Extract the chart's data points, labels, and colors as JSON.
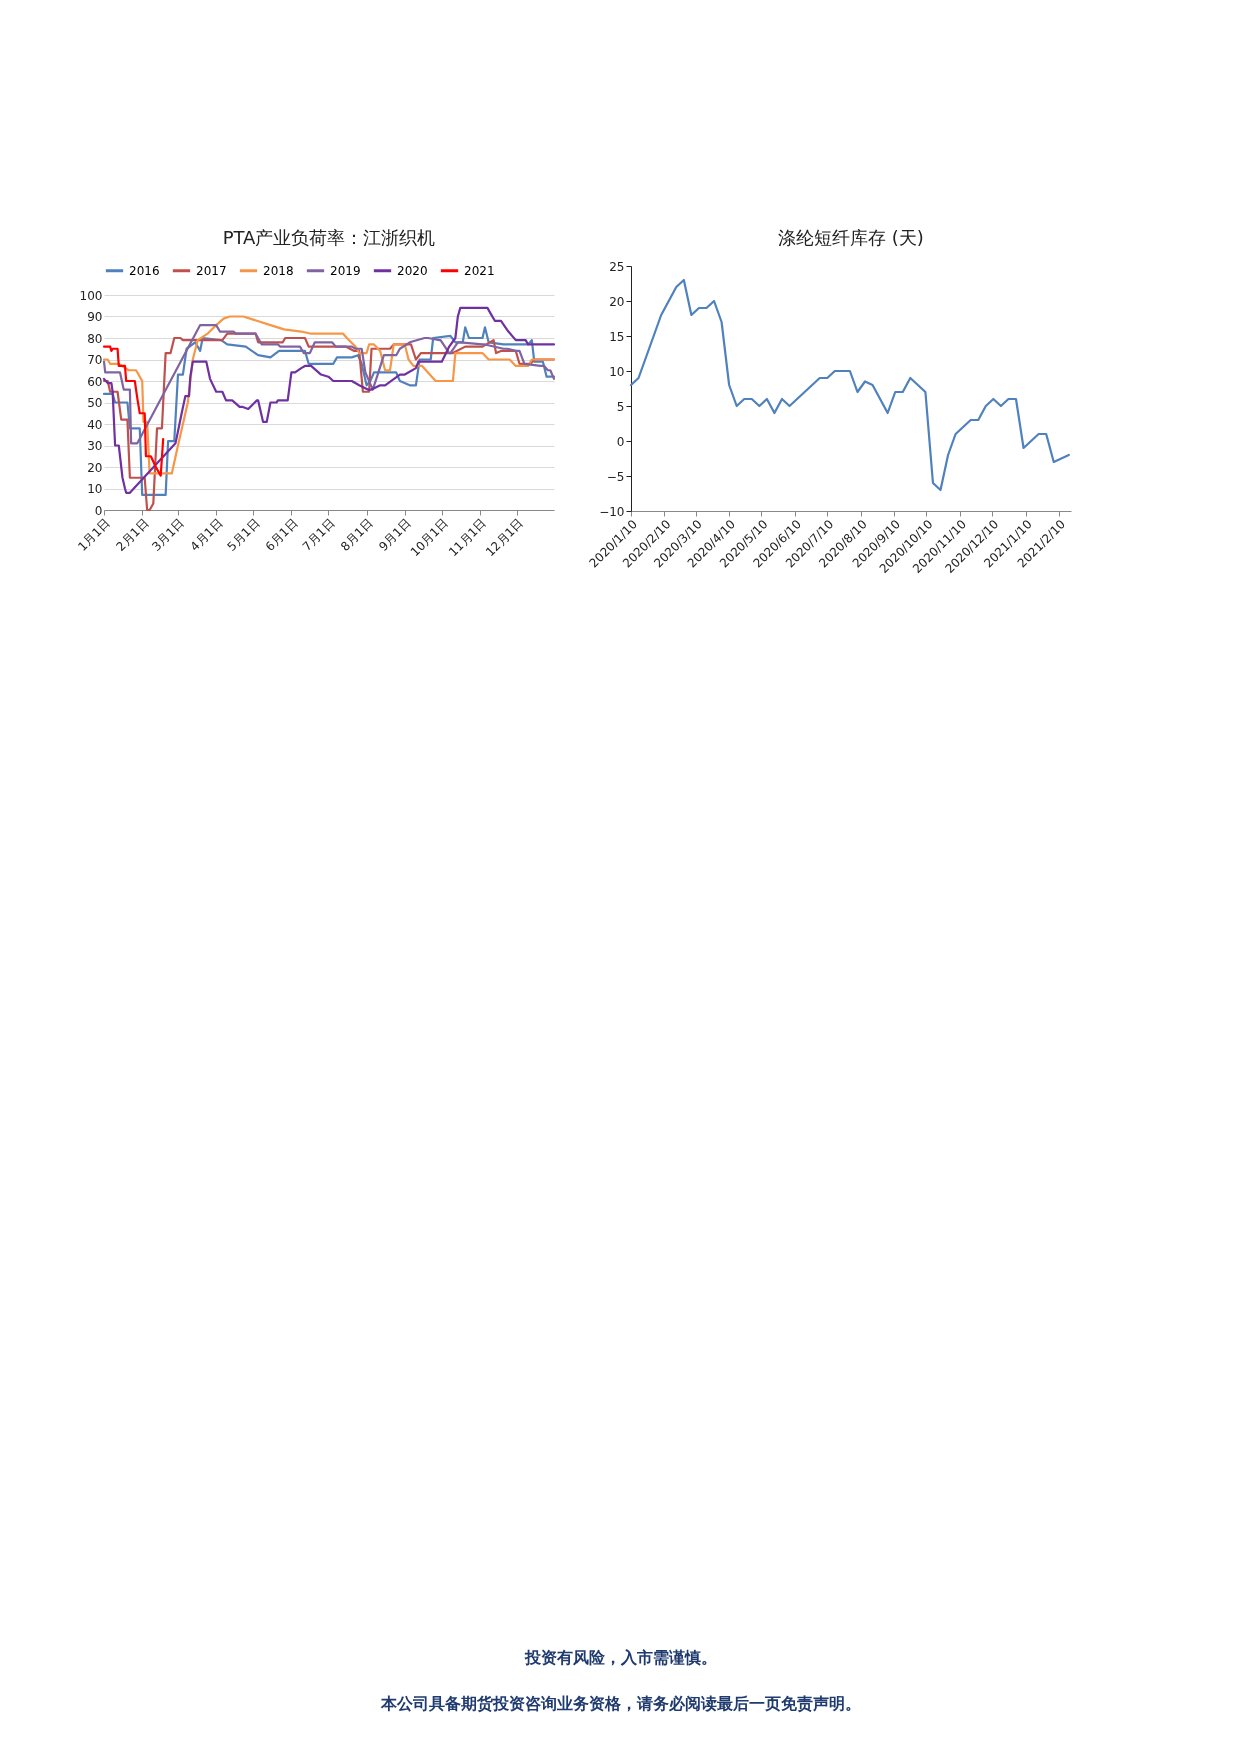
{
  "chart_data": [
    {
      "type": "line",
      "title": "PTA产业负荷率：江浙织机",
      "legend": "top",
      "grid": "y",
      "xlim": [
        "--01-01",
        "--12-31"
      ],
      "xticks": [
        {
          "value": "--01-01",
          "label": "1月1日"
        },
        {
          "value": "--02-01",
          "label": "2月1日"
        },
        {
          "value": "--03-01",
          "label": "3月1日"
        },
        {
          "value": "--04-01",
          "label": "4月1日"
        },
        {
          "value": "--05-01",
          "label": "5月1日"
        },
        {
          "value": "--06-01",
          "label": "6月1日"
        },
        {
          "value": "--07-01",
          "label": "7月1日"
        },
        {
          "value": "--08-01",
          "label": "8月1日"
        },
        {
          "value": "--09-01",
          "label": "9月1日"
        },
        {
          "value": "--10-01",
          "label": "10月1日"
        },
        {
          "value": "--11-01",
          "label": "11月1日"
        },
        {
          "value": "--12-01",
          "label": "12月1日"
        }
      ],
      "ylim": [
        0,
        100
      ],
      "yticks": [
        0,
        10,
        20,
        30,
        40,
        50,
        60,
        70,
        80,
        90,
        100
      ],
      "series": [
        {
          "name": "2016",
          "color": "#4f81bd",
          "x": [
            "--01-01",
            "--01-08",
            "--01-10",
            "--01-20",
            "--01-22",
            "--01-30",
            "--02-01",
            "--02-20",
            "--02-22",
            "--02-27",
            "--03-01",
            "--03-05",
            "--03-08",
            "--03-15",
            "--03-19",
            "--03-21",
            "--04-05",
            "--04-10",
            "--04-25",
            "--05-05",
            "--05-15",
            "--05-22",
            "--06-12",
            "--06-15",
            "--07-05",
            "--07-08",
            "--07-20",
            "--07-25",
            "--07-28",
            "--08-01",
            "--08-04",
            "--08-07",
            "--08-25",
            "--08-28",
            "--09-05",
            "--09-10",
            "--09-13",
            "--09-22",
            "--09-24",
            "--10-08",
            "--10-12",
            "--10-18",
            "--10-20",
            "--10-23",
            "--11-03",
            "--11-05",
            "--11-08",
            "--11-20",
            "--12-10",
            "--12-13",
            "--12-15",
            "--12-22",
            "--12-25",
            "--12-31"
          ],
          "values": [
            54,
            54,
            50,
            50,
            38,
            38,
            7,
            7,
            32,
            32,
            63,
            63,
            75,
            78,
            74,
            80,
            79,
            77,
            76,
            72,
            71,
            74,
            74,
            68,
            68,
            71,
            71,
            72,
            68,
            58,
            60,
            64,
            64,
            60,
            58,
            58,
            70,
            70,
            80,
            81,
            78,
            78,
            85,
            80,
            80,
            85,
            78,
            77,
            77,
            79,
            69,
            69,
            62,
            62
          ]
        },
        {
          "name": "2017",
          "color": "#c0504d",
          "x": [
            "--01-01",
            "--01-04",
            "--01-06",
            "--01-12",
            "--01-15",
            "--01-20",
            "--01-22",
            "--02-03",
            "--02-05",
            "--02-07",
            "--02-10",
            "--02-13",
            "--02-17",
            "--02-20",
            "--02-24",
            "--02-27",
            "--03-03",
            "--03-05",
            "--04-06",
            "--04-10",
            "--05-03",
            "--05-05",
            "--05-25",
            "--05-27",
            "--06-12",
            "--06-15",
            "--07-15",
            "--07-22",
            "--07-26",
            "--07-29",
            "--08-03",
            "--08-05",
            "--08-20",
            "--08-23",
            "--09-06",
            "--09-10",
            "--09-14",
            "--10-05",
            "--10-10",
            "--10-20",
            "--11-03",
            "--11-12",
            "--11-14",
            "--11-18",
            "--11-30",
            "--12-03",
            "--12-12",
            "--12-15",
            "--12-31"
          ],
          "values": [
            60,
            60,
            55,
            55,
            42,
            42,
            15,
            15,
            0,
            0,
            3,
            38,
            38,
            73,
            73,
            80,
            80,
            79,
            79,
            82,
            82,
            78,
            78,
            80,
            80,
            76,
            76,
            74,
            74,
            55,
            55,
            75,
            75,
            77,
            77,
            70,
            73,
            73,
            73,
            76,
            76,
            79,
            73,
            74,
            74,
            68,
            68,
            70,
            70
          ]
        },
        {
          "name": "2018",
          "color": "#f79646",
          "x": [
            "--01-01",
            "--01-04",
            "--01-06",
            "--01-13",
            "--01-21",
            "--01-27",
            "--02-01",
            "--02-02",
            "--02-05",
            "--02-07",
            "--02-25",
            "--03-01",
            "--03-09",
            "--03-13",
            "--03-17",
            "--03-25",
            "--04-01",
            "--04-07",
            "--04-12",
            "--04-23",
            "--05-04",
            "--05-15",
            "--05-26",
            "--06-09",
            "--06-17",
            "--07-13",
            "--07-16",
            "--07-23",
            "--07-26",
            "--08-01",
            "--08-03",
            "--08-07",
            "--08-12",
            "--08-16",
            "--08-20",
            "--08-23",
            "--09-01",
            "--09-04",
            "--09-08",
            "--09-15",
            "--09-26",
            "--10-10",
            "--10-12",
            "--11-03",
            "--11-08",
            "--11-25",
            "--11-30",
            "--12-10",
            "--12-13",
            "--12-31"
          ],
          "values": [
            70,
            70,
            68,
            68,
            65,
            65,
            60,
            41,
            41,
            17,
            17,
            30,
            50,
            70,
            79,
            82,
            86,
            89,
            90,
            90,
            88,
            86,
            84,
            83,
            82,
            82,
            80,
            76,
            73,
            73,
            77,
            77,
            74,
            65,
            65,
            77,
            77,
            70,
            67,
            67,
            60,
            60,
            73,
            73,
            70,
            70,
            67,
            67,
            70,
            70
          ]
        },
        {
          "name": "2019",
          "color": "#8064a2",
          "x": [
            "--01-01",
            "--01-02",
            "--01-14",
            "--01-17",
            "--01-22",
            "--01-23",
            "--01-28",
            "--03-19",
            "--04-01",
            "--04-04",
            "--04-15",
            "--04-17",
            "--05-03",
            "--05-08",
            "--05-21",
            "--05-23",
            "--06-08",
            "--06-11",
            "--06-16",
            "--06-20",
            "--07-04",
            "--07-07",
            "--07-20",
            "--07-23",
            "--07-28",
            "--07-31",
            "--08-06",
            "--08-10",
            "--08-15",
            "--08-25",
            "--08-28",
            "--09-05",
            "--09-17",
            "--09-20",
            "--09-29",
            "--09-30",
            "--10-07",
            "--10-08",
            "--10-14",
            "--10-16",
            "--11-03",
            "--11-05",
            "--11-20",
            "--11-23",
            "--11-30",
            "--12-03",
            "--12-07",
            "--12-20",
            "--12-23",
            "--12-26",
            "--12-28",
            "--12-31"
          ],
          "values": [
            69,
            64,
            64,
            56,
            56,
            31,
            31,
            86,
            86,
            83,
            83,
            82,
            82,
            77,
            77,
            76,
            76,
            73,
            73,
            78,
            78,
            76,
            76,
            75,
            75,
            64,
            56,
            63,
            72,
            72,
            75,
            78,
            80,
            80,
            79,
            79,
            73,
            73,
            78,
            78,
            77,
            77,
            75,
            75,
            74,
            74,
            68,
            67,
            67,
            65,
            65,
            61
          ]
        },
        {
          "name": "2020",
          "color": "#7030a0",
          "x": [
            "--01-01",
            "--01-04",
            "--01-07",
            "--01-08",
            "--01-10",
            "--01-13",
            "--01-16",
            "--01-18",
            "--01-19",
            "--01-22",
            "--02-28",
            "--03-04",
            "--03-07",
            "--03-10",
            "--03-11",
            "--03-13",
            "--03-24",
            "--03-27",
            "--04-01",
            "--04-06",
            "--04-09",
            "--04-14",
            "--04-20",
            "--04-22",
            "--04-27",
            "--05-04",
            "--05-05",
            "--05-09",
            "--05-12",
            "--05-15",
            "--05-20",
            "--05-21",
            "--05-29",
            "--06-01",
            "--06-04",
            "--06-09",
            "--06-12",
            "--06-17",
            "--06-25",
            "--07-01",
            "--07-05",
            "--07-20",
            "--07-26",
            "--08-02",
            "--08-05",
            "--08-12",
            "--08-16",
            "--08-28",
            "--09-01",
            "--09-10",
            "--09-12",
            "--10-01",
            "--10-07",
            "--10-12",
            "--10-14",
            "--10-16",
            "--11-07",
            "--11-10",
            "--11-13",
            "--11-18",
            "--11-24",
            "--11-30",
            "--12-08",
            "--12-10",
            "--12-31"
          ],
          "values": [
            61,
            59,
            59,
            55,
            30,
            30,
            15,
            10,
            8,
            8,
            31,
            45,
            53,
            53,
            62,
            69,
            69,
            61,
            55,
            55,
            51,
            51,
            48,
            48,
            47,
            51,
            51,
            41,
            41,
            50,
            50,
            51,
            51,
            64,
            64,
            66,
            67,
            67,
            63,
            62,
            60,
            60,
            58,
            56,
            56,
            58,
            58,
            63,
            63,
            66,
            69,
            69,
            76,
            80,
            90,
            94,
            94,
            91,
            88,
            88,
            83,
            79,
            79,
            77,
            77
          ]
        },
        {
          "name": "2021",
          "color": "#ff0000",
          "x": [
            "--01-01",
            "--01-06",
            "--01-07",
            "--01-08",
            "--01-12",
            "--01-13",
            "--01-18",
            "--01-19",
            "--01-26",
            "--01-28",
            "--01-30",
            "--02-03",
            "--02-04",
            "--02-08",
            "--02-12",
            "--02-16",
            "--02-18"
          ],
          "values": [
            76,
            76,
            74,
            75,
            75,
            67,
            67,
            60,
            60,
            52,
            45,
            45,
            25,
            25,
            20,
            16,
            33
          ]
        }
      ]
    },
    {
      "type": "line",
      "title": "涤纶短纤库存 (天)",
      "xlim": [
        "2020-01-10",
        "2021-02-21"
      ],
      "xticks": [
        {
          "value": "2020-01-10",
          "label": "2020/1/10"
        },
        {
          "value": "2020-02-10",
          "label": "2020/2/10"
        },
        {
          "value": "2020-03-10",
          "label": "2020/3/10"
        },
        {
          "value": "2020-04-10",
          "label": "2020/4/10"
        },
        {
          "value": "2020-05-10",
          "label": "2020/5/10"
        },
        {
          "value": "2020-06-10",
          "label": "2020/6/10"
        },
        {
          "value": "2020-07-10",
          "label": "2020/7/10"
        },
        {
          "value": "2020-08-10",
          "label": "2020/8/10"
        },
        {
          "value": "2020-09-10",
          "label": "2020/9/10"
        },
        {
          "value": "2020-10-10",
          "label": "2020/10/10"
        },
        {
          "value": "2020-11-10",
          "label": "2020/11/10"
        },
        {
          "value": "2020-12-10",
          "label": "2020/12/10"
        },
        {
          "value": "2021-01-10",
          "label": "2021/1/10"
        },
        {
          "value": "2021-02-10",
          "label": "2021/2/10"
        }
      ],
      "ylim": [
        -10,
        25
      ],
      "yticks": [
        -10,
        -5,
        0,
        5,
        10,
        15,
        20,
        25
      ],
      "annotations": [
        "投资有风险，入市需谨慎。",
        "本公司具备期货投资咨询业务资格，请务必阅读最后一页免责声明。"
      ],
      "series": [
        {
          "color": "#4f81bd",
          "x": [
            "2020-01-10",
            "2020-01-17",
            "2020-01-24",
            "2020-01-31",
            "2020-02-07",
            "2020-02-14",
            "2020-02-21",
            "2020-02-28",
            "2020-03-06",
            "2020-03-13",
            "2020-03-20",
            "2020-03-27",
            "2020-04-03",
            "2020-04-10",
            "2020-04-17",
            "2020-04-24",
            "2020-05-01",
            "2020-05-08",
            "2020-05-15",
            "2020-05-22",
            "2020-05-29",
            "2020-06-05",
            "2020-06-12",
            "2020-06-19",
            "2020-06-26",
            "2020-07-03",
            "2020-07-10",
            "2020-07-17",
            "2020-07-24",
            "2020-07-31",
            "2020-08-07",
            "2020-08-14",
            "2020-08-21",
            "2020-08-28",
            "2020-09-04",
            "2020-09-11",
            "2020-09-18",
            "2020-09-25",
            "2020-10-02",
            "2020-10-09",
            "2020-10-16",
            "2020-10-23",
            "2020-10-30",
            "2020-11-06",
            "2020-11-13",
            "2020-11-20",
            "2020-11-27",
            "2020-12-04",
            "2020-12-11",
            "2020-12-18",
            "2020-12-25",
            "2021-01-01",
            "2021-01-08",
            "2021-01-15",
            "2021-01-22",
            "2021-01-29",
            "2021-02-05",
            "2021-02-12",
            "2021-02-19"
          ],
          "values": [
            8,
            9,
            12,
            15,
            18,
            20,
            22,
            23,
            18,
            19,
            19,
            20,
            17,
            8,
            5,
            6,
            6,
            5,
            6,
            4,
            6,
            5,
            6,
            7,
            8,
            9,
            9,
            10,
            10,
            10,
            7,
            8.5,
            8,
            6,
            4,
            7,
            7,
            9,
            8,
            7,
            -6,
            -7,
            -2,
            1,
            2,
            3,
            3,
            5,
            6,
            5,
            6,
            6,
            -1,
            0,
            1,
            1,
            -3,
            -2.5,
            -2
          ]
        }
      ]
    }
  ]
}
